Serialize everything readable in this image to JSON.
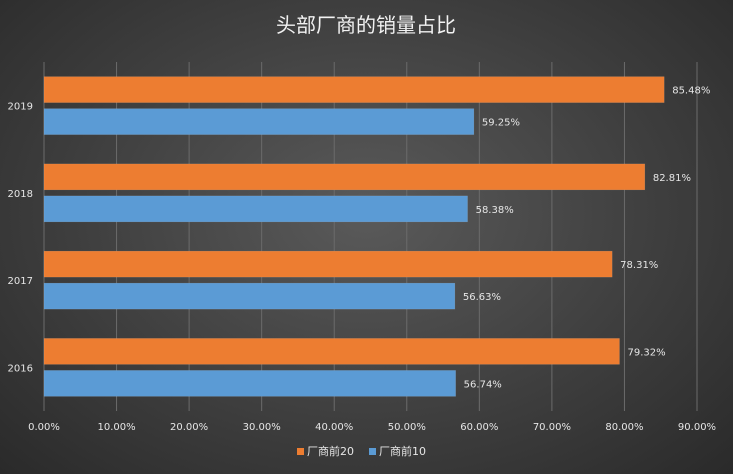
{
  "chart_data": {
    "type": "bar",
    "orientation": "horizontal",
    "title": "头部厂商的销量占比",
    "categories": [
      "2019",
      "2018",
      "2017",
      "2016"
    ],
    "series": [
      {
        "name": "厂商前20",
        "color": "#ed7d31",
        "values": [
          85.48,
          82.81,
          78.31,
          79.32
        ],
        "labels": [
          "85.48%",
          "82.81%",
          "78.31%",
          "79.32%"
        ]
      },
      {
        "name": "厂商前10",
        "color": "#5b9bd5",
        "values": [
          59.25,
          58.38,
          56.63,
          56.74
        ],
        "labels": [
          "59.25%",
          "58.38%",
          "56.63%",
          "56.74%"
        ]
      }
    ],
    "xlim": [
      0,
      90
    ],
    "xticks": [
      0,
      10,
      20,
      30,
      40,
      50,
      60,
      70,
      80,
      90
    ],
    "xtick_labels": [
      "0.00%",
      "10.00%",
      "20.00%",
      "30.00%",
      "40.00%",
      "50.00%",
      "60.00%",
      "70.00%",
      "80.00%",
      "90.00%"
    ],
    "grid": true,
    "legend_position": "bottom"
  }
}
